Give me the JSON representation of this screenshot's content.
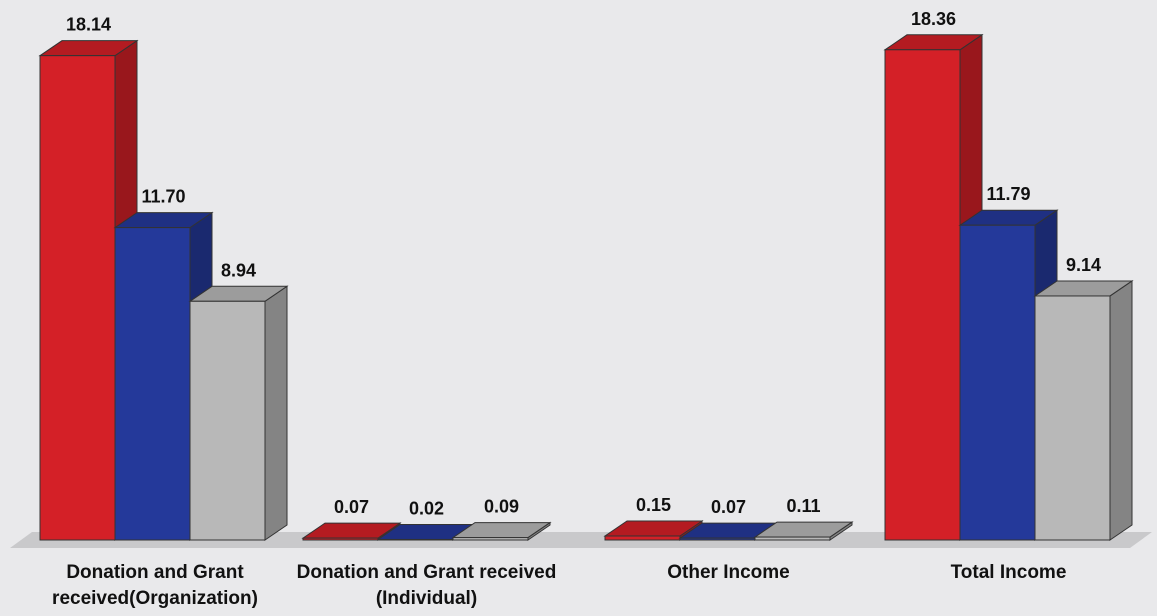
{
  "chart_data": {
    "type": "bar3d",
    "categories": [
      "Donation and Grant received(Organization)",
      "Donation and Grant received (Individual)",
      "Other Income",
      "Total Income"
    ],
    "series": [
      {
        "color": "#d42027",
        "values": [
          18.14,
          0.07,
          0.15,
          18.36
        ],
        "value_labels": [
          "18.14",
          "0.07",
          "0.15",
          "18.36"
        ]
      },
      {
        "color": "#24399a",
        "values": [
          11.7,
          0.02,
          0.07,
          11.79
        ],
        "value_labels": [
          "11.70",
          "0.02",
          "0.07",
          "11.79"
        ]
      },
      {
        "color": "#b8b8b8",
        "values": [
          8.94,
          0.09,
          0.11,
          9.14
        ],
        "value_labels": [
          "8.94",
          "0.09",
          "0.11",
          "9.14"
        ]
      }
    ]
  }
}
